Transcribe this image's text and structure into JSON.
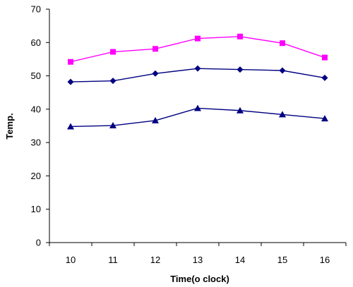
{
  "chart_data": {
    "type": "line",
    "title": "",
    "xlabel": "Time(o clock)",
    "ylabel": "Temp.",
    "categories": [
      "10",
      "11",
      "12",
      "13",
      "14",
      "15",
      "16"
    ],
    "ylim": [
      0,
      70
    ],
    "yticks": [
      0,
      10,
      20,
      30,
      40,
      50,
      60,
      70
    ],
    "grid": false,
    "legend": "none",
    "series": [
      {
        "values": [
          54.2,
          57.2,
          58.1,
          61.2,
          61.8,
          59.8,
          55.5
        ],
        "color": "#ff00ff",
        "marker": "square"
      },
      {
        "values": [
          48.2,
          48.5,
          50.7,
          52.2,
          51.9,
          51.6,
          49.4
        ],
        "color": "#000080",
        "marker": "diamond"
      },
      {
        "values": [
          34.8,
          35.1,
          36.6,
          40.3,
          39.6,
          38.4,
          37.2
        ],
        "color": "#000080",
        "marker": "triangle"
      }
    ]
  }
}
